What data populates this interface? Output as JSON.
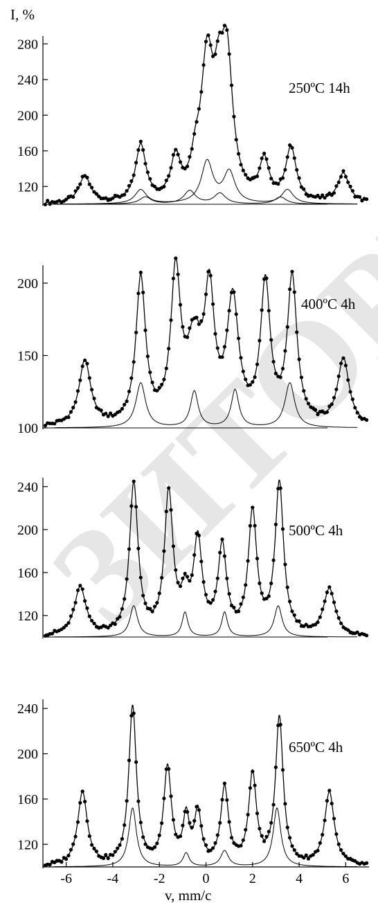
{
  "y_axis_label": "I, %",
  "x_axis_label": "v, mm/c",
  "watermark_text": "ЗИТОРИЙ  Б",
  "colors": {
    "line": "#000000",
    "point": "#000000",
    "watermark": "#e6e6e6"
  },
  "chart_data": [
    {
      "type": "line",
      "annotation": "250ºC 14h",
      "xlim": [
        -7,
        7
      ],
      "ylim": [
        100,
        285
      ],
      "yticks": [
        120,
        160,
        200,
        240,
        280
      ],
      "total": {
        "base": 100,
        "peaks": [
          [
            -5.2,
            30,
            0.3
          ],
          [
            -2.8,
            63,
            0.27
          ],
          [
            -1.3,
            45,
            0.25
          ],
          [
            -0.45,
            28,
            0.22
          ],
          [
            0.05,
            150,
            0.32
          ],
          [
            0.55,
            80,
            0.25
          ],
          [
            0.9,
            148,
            0.3
          ],
          [
            2.5,
            43,
            0.25
          ],
          [
            3.65,
            60,
            0.27
          ],
          [
            5.9,
            33,
            0.3
          ]
        ]
      },
      "components": [
        {
          "base": 100,
          "peaks": [
            [
              0.05,
              47,
              0.3
            ],
            [
              1.0,
              35,
              0.3
            ],
            [
              -2.8,
              16,
              0.3
            ],
            [
              3.5,
              16,
              0.3
            ]
          ]
        },
        {
          "base": 100,
          "peaks": [
            [
              -0.7,
              15,
              0.3
            ],
            [
              0.6,
              12,
              0.3
            ],
            [
              -2.6,
              8,
              0.3
            ],
            [
              3.2,
              8,
              0.3
            ]
          ]
        }
      ]
    },
    {
      "type": "line",
      "annotation": "400ºC 4h",
      "xlim": [
        -7,
        7
      ],
      "ylim": [
        100,
        210
      ],
      "yticks": [
        100,
        150,
        200
      ],
      "total": {
        "base": 100,
        "peaks": [
          [
            -5.2,
            45,
            0.3
          ],
          [
            -2.8,
            100,
            0.25
          ],
          [
            -1.3,
            100,
            0.25
          ],
          [
            -0.5,
            52,
            0.4
          ],
          [
            0.15,
            83,
            0.25
          ],
          [
            1.15,
            83,
            0.3
          ],
          [
            2.55,
            95,
            0.25
          ],
          [
            3.7,
            100,
            0.25
          ],
          [
            5.9,
            46,
            0.3
          ]
        ]
      },
      "components": [
        {
          "base": 100,
          "peaks": [
            [
              -2.8,
              31,
              0.25
            ],
            [
              -0.5,
              25,
              0.2
            ],
            [
              1.25,
              26,
              0.2
            ],
            [
              3.6,
              31,
              0.25
            ]
          ]
        }
      ]
    },
    {
      "type": "line",
      "annotation": "500ºC 4h",
      "xlim": [
        -7,
        7
      ],
      "ylim": [
        100,
        245
      ],
      "yticks": [
        120,
        160,
        200,
        240
      ],
      "total": {
        "base": 100,
        "peaks": [
          [
            -5.4,
            45,
            0.3
          ],
          [
            -3.1,
            140,
            0.22
          ],
          [
            -1.6,
            130,
            0.22
          ],
          [
            -0.9,
            30,
            0.22
          ],
          [
            -0.35,
            85,
            0.22
          ],
          [
            0.7,
            80,
            0.22
          ],
          [
            2.0,
            112,
            0.22
          ],
          [
            3.15,
            140,
            0.22
          ],
          [
            5.3,
            43,
            0.3
          ]
        ]
      },
      "components": [
        {
          "base": 100,
          "peaks": [
            [
              -3.1,
              29,
              0.2
            ],
            [
              -0.9,
              23,
              0.15
            ],
            [
              0.8,
              23,
              0.15
            ],
            [
              3.1,
              29,
              0.2
            ]
          ]
        }
      ]
    },
    {
      "type": "line",
      "annotation": "650ºC 4h",
      "xlim": [
        -7,
        7
      ],
      "ylim": [
        100,
        245
      ],
      "yticks": [
        120,
        160,
        200,
        240
      ],
      "xticks": [
        -6,
        -4,
        -2,
        0,
        2,
        4,
        6
      ],
      "total": {
        "base": 100,
        "peaks": [
          [
            -5.3,
            65,
            0.25
          ],
          [
            -3.15,
            140,
            0.2
          ],
          [
            -1.65,
            85,
            0.2
          ],
          [
            -0.85,
            40,
            0.16
          ],
          [
            -0.35,
            45,
            0.18
          ],
          [
            0.8,
            67,
            0.2
          ],
          [
            2.0,
            79,
            0.2
          ],
          [
            3.15,
            130,
            0.2
          ],
          [
            5.3,
            65,
            0.25
          ]
        ]
      },
      "components": [
        {
          "base": 100,
          "peaks": [
            [
              -3.15,
              52,
              0.2
            ],
            [
              3.05,
              52,
              0.2
            ],
            [
              -0.85,
              12,
              0.16
            ],
            [
              0.8,
              14,
              0.2
            ]
          ]
        }
      ]
    }
  ]
}
